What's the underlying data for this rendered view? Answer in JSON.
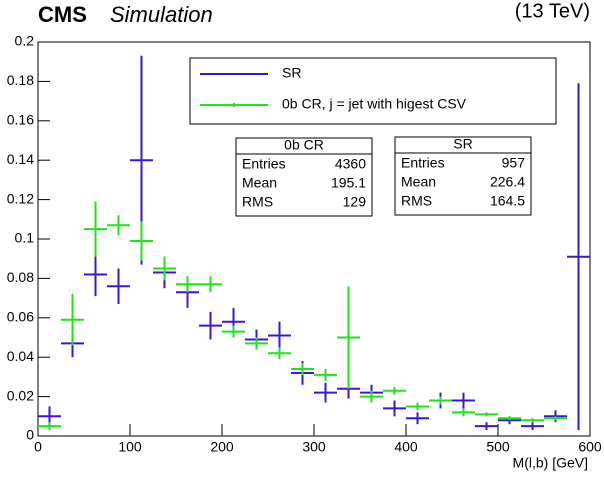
{
  "chart_data": {
    "type": "histogram",
    "title": "CMS",
    "subtitle": "Simulation",
    "energy_label": "(13 TeV)",
    "x_label": "M(l,b) [GeV]",
    "bins": [
      0,
      25,
      50,
      75,
      100,
      125,
      150,
      175,
      200,
      225,
      250,
      275,
      300,
      325,
      350,
      375,
      400,
      425,
      450,
      475,
      500,
      525,
      550,
      575,
      600
    ],
    "series": [
      {
        "name": "SR",
        "color": "#3c14dc",
        "values": [
          0.01,
          0.047,
          0.082,
          0.076,
          0.14,
          0.083,
          0.073,
          0.056,
          0.058,
          0.049,
          0.051,
          0.032,
          0.022,
          0.024,
          0.022,
          0.014,
          0.009,
          0.018,
          0.018,
          0.005,
          0.008,
          0.005,
          0.01,
          0.091
        ],
        "errors": [
          0.005,
          0.007,
          0.011,
          0.009,
          0.053,
          0.008,
          0.008,
          0.007,
          0.007,
          0.005,
          0.007,
          0.006,
          0.005,
          0.005,
          0.004,
          0.004,
          0.003,
          0.004,
          0.004,
          0.002,
          0.002,
          0.002,
          0.003,
          0.088
        ]
      },
      {
        "name": "0b CR, j = jet with higest CSV",
        "color": "#1ee614",
        "values": [
          0.005,
          0.059,
          0.105,
          0.107,
          0.099,
          0.085,
          0.077,
          0.077,
          0.053,
          0.047,
          0.042,
          0.034,
          0.031,
          0.05,
          0.02,
          0.023,
          0.015,
          0.018,
          0.012,
          0.011,
          0.009,
          0.008,
          0.009,
          null
        ],
        "errors": [
          0.002,
          0.013,
          0.014,
          0.005,
          0.01,
          0.006,
          0.004,
          0.004,
          0.003,
          0.003,
          0.003,
          0.003,
          0.003,
          0.026,
          0.003,
          0.002,
          0.002,
          0.002,
          0.002,
          0.001,
          0.001,
          0.001,
          0.001,
          null
        ]
      }
    ],
    "xlim": [
      0,
      600
    ],
    "xticks": [
      0,
      100,
      200,
      300,
      400,
      500,
      600
    ],
    "ylim": [
      0,
      0.2
    ],
    "yticks": [
      0,
      0.02,
      0.04,
      0.06,
      0.08,
      0.1,
      0.12,
      0.14,
      0.16,
      0.18,
      0.2
    ],
    "stat_boxes": [
      {
        "title": "0b CR",
        "rows": [
          [
            "Entries",
            "4360"
          ],
          [
            "Mean",
            "195.1"
          ],
          [
            "RMS",
            "129"
          ]
        ]
      },
      {
        "title": "SR",
        "rows": [
          [
            "Entries",
            "957"
          ],
          [
            "Mean",
            "226.4"
          ],
          [
            "RMS",
            "164.5"
          ]
        ]
      }
    ]
  }
}
